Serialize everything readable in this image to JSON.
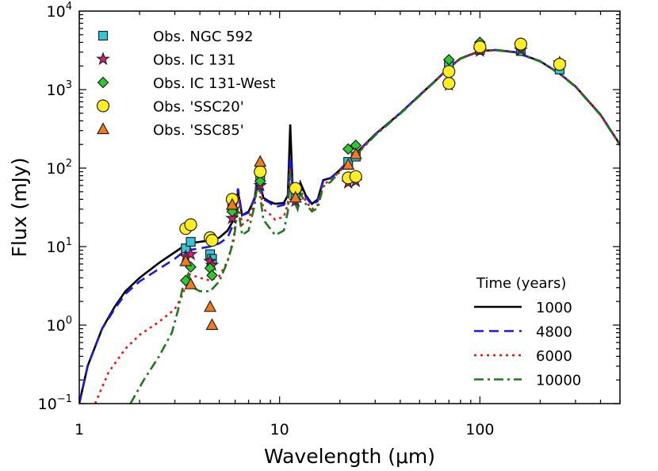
{
  "chart_data": {
    "type": "line+scatter",
    "title": "",
    "xlabel": "Wavelength (μm)",
    "ylabel": "Flux (mJy)",
    "xscale": "log",
    "yscale": "log",
    "xlim": [
      1,
      500
    ],
    "ylim": [
      0.1,
      10000
    ],
    "x_ticks": [
      {
        "value": 1,
        "label": "1"
      },
      {
        "value": 10,
        "label": "10"
      },
      {
        "value": 100,
        "label": "100"
      }
    ],
    "y_ticks": [
      {
        "value": 0.1,
        "base": "10",
        "exp": "−1"
      },
      {
        "value": 1,
        "base": "10",
        "exp": "0"
      },
      {
        "value": 10,
        "base": "10",
        "exp": "1"
      },
      {
        "value": 100,
        "base": "10",
        "exp": "2"
      },
      {
        "value": 1000,
        "base": "10",
        "exp": "3"
      },
      {
        "value": 10000,
        "base": "10",
        "exp": "4"
      }
    ],
    "legend_location": "top-left",
    "observations": [
      {
        "name": "Obs. NGC 592",
        "marker": "square",
        "color": "#33c7d6",
        "points": [
          [
            3.4,
            9.5
          ],
          [
            3.6,
            11.5
          ],
          [
            4.5,
            8.0
          ],
          [
            4.6,
            7.0
          ],
          [
            5.8,
            31
          ],
          [
            8.0,
            75
          ],
          [
            12,
            45
          ],
          [
            22,
            120
          ],
          [
            24,
            140
          ],
          [
            70,
            2100
          ],
          [
            100,
            3200
          ],
          [
            160,
            3100
          ],
          [
            250,
            1800
          ]
        ]
      },
      {
        "name": "Obs. IC 131",
        "marker": "star",
        "color": "#e0197a",
        "points": [
          [
            3.4,
            7.5
          ],
          [
            3.6,
            8.0
          ],
          [
            4.5,
            6.5
          ],
          [
            4.6,
            5.8
          ],
          [
            5.8,
            23
          ],
          [
            8.0,
            60
          ],
          [
            12,
            38
          ],
          [
            22,
            65
          ],
          [
            24,
            68
          ],
          [
            70,
            1150
          ],
          [
            100,
            3100
          ],
          [
            160,
            3200
          ],
          [
            250,
            2200
          ]
        ]
      },
      {
        "name": "Obs. IC 131-West",
        "marker": "diamond",
        "color": "#2dc92d",
        "points": [
          [
            3.4,
            3.7
          ],
          [
            3.6,
            5.5
          ],
          [
            4.5,
            5.3
          ],
          [
            4.6,
            4.3
          ],
          [
            5.8,
            28
          ],
          [
            8.0,
            68
          ],
          [
            12,
            50
          ],
          [
            22,
            175
          ],
          [
            24,
            195
          ],
          [
            70,
            2400
          ],
          [
            100,
            4000
          ],
          [
            160,
            3500
          ]
        ]
      },
      {
        "name": "Obs. 'SSC20'",
        "marker": "circle",
        "color": "#ffee22",
        "points": [
          [
            3.4,
            17
          ],
          [
            3.6,
            19
          ],
          [
            4.5,
            13
          ],
          [
            4.6,
            12
          ],
          [
            5.8,
            40
          ],
          [
            8.0,
            90
          ],
          [
            12,
            55
          ],
          [
            22,
            75
          ],
          [
            24,
            78
          ],
          [
            70,
            1700
          ],
          [
            70,
            1200
          ],
          [
            100,
            3500
          ],
          [
            160,
            3800
          ],
          [
            250,
            2100
          ]
        ]
      },
      {
        "name": "Obs. 'SSC85'",
        "marker": "triangle",
        "color": "#f37a1f",
        "points": [
          [
            3.4,
            6.5
          ],
          [
            3.6,
            3.3
          ],
          [
            4.5,
            1.7
          ],
          [
            4.6,
            1.0
          ],
          [
            5.8,
            34
          ],
          [
            8.0,
            120
          ],
          [
            12,
            42
          ],
          [
            22,
            110
          ],
          [
            24,
            150
          ]
        ]
      }
    ],
    "series": [
      {
        "name": "1000",
        "color": "#000000",
        "dash": "solid",
        "points": [
          [
            1,
            0.1
          ],
          [
            1.1,
            0.3
          ],
          [
            1.3,
            0.9
          ],
          [
            1.5,
            1.7
          ],
          [
            1.7,
            2.7
          ],
          [
            2.0,
            4.0
          ],
          [
            2.5,
            6.2
          ],
          [
            3.0,
            8.5
          ],
          [
            3.3,
            10
          ],
          [
            3.5,
            11
          ],
          [
            4.0,
            11.5
          ],
          [
            4.5,
            12
          ],
          [
            5.0,
            13
          ],
          [
            5.5,
            16
          ],
          [
            5.9,
            22
          ],
          [
            6.2,
            50
          ],
          [
            6.5,
            25
          ],
          [
            7.0,
            28
          ],
          [
            7.5,
            40
          ],
          [
            7.8,
            80
          ],
          [
            8.3,
            42
          ],
          [
            8.8,
            38
          ],
          [
            9.5,
            35
          ],
          [
            10.5,
            36
          ],
          [
            11.0,
            45
          ],
          [
            11.3,
            360
          ],
          [
            11.6,
            60
          ],
          [
            12.3,
            42
          ],
          [
            12.7,
            65
          ],
          [
            13.5,
            45
          ],
          [
            14.5,
            35
          ],
          [
            15.5,
            40
          ],
          [
            16.5,
            70
          ],
          [
            18,
            75
          ],
          [
            20,
            95
          ],
          [
            25,
            170
          ],
          [
            30,
            270
          ],
          [
            40,
            500
          ],
          [
            50,
            850
          ],
          [
            60,
            1300
          ],
          [
            70,
            1900
          ],
          [
            80,
            2500
          ],
          [
            100,
            3100
          ],
          [
            120,
            3200
          ],
          [
            150,
            3000
          ],
          [
            200,
            2300
          ],
          [
            250,
            1600
          ],
          [
            300,
            1100
          ],
          [
            400,
            480
          ],
          [
            500,
            200
          ]
        ]
      },
      {
        "name": "4800",
        "color": "#1818e6",
        "dash": "dashed",
        "points": [
          [
            1,
            0.1
          ],
          [
            1.1,
            0.3
          ],
          [
            1.3,
            0.9
          ],
          [
            1.5,
            1.6
          ],
          [
            1.7,
            2.5
          ],
          [
            2.0,
            3.6
          ],
          [
            2.5,
            5.2
          ],
          [
            3.0,
            7.0
          ],
          [
            3.3,
            8.5
          ],
          [
            3.5,
            9.0
          ],
          [
            4.0,
            9.5
          ],
          [
            4.5,
            10
          ],
          [
            5.0,
            11
          ],
          [
            5.5,
            13
          ],
          [
            5.9,
            20
          ],
          [
            6.2,
            55
          ],
          [
            6.5,
            25
          ],
          [
            7.0,
            27
          ],
          [
            7.5,
            42
          ],
          [
            7.8,
            85
          ],
          [
            8.3,
            40
          ],
          [
            8.8,
            37
          ],
          [
            9.5,
            32
          ],
          [
            10.5,
            34
          ],
          [
            11.0,
            40
          ],
          [
            11.3,
            140
          ],
          [
            11.6,
            55
          ],
          [
            12.3,
            40
          ],
          [
            12.7,
            55
          ],
          [
            13.5,
            43
          ],
          [
            14.5,
            34
          ],
          [
            15.5,
            38
          ],
          [
            16.5,
            68
          ],
          [
            18,
            74
          ],
          [
            20,
            95
          ],
          [
            25,
            170
          ],
          [
            30,
            270
          ],
          [
            40,
            500
          ],
          [
            50,
            850
          ],
          [
            60,
            1300
          ],
          [
            70,
            1900
          ],
          [
            80,
            2500
          ],
          [
            100,
            3100
          ],
          [
            120,
            3200
          ],
          [
            150,
            3000
          ],
          [
            200,
            2300
          ],
          [
            250,
            1600
          ],
          [
            300,
            1100
          ],
          [
            400,
            480
          ],
          [
            500,
            200
          ]
        ]
      },
      {
        "name": "6000",
        "color": "#ee1111",
        "dash": "dotted",
        "points": [
          [
            1.2,
            0.1
          ],
          [
            1.4,
            0.25
          ],
          [
            1.7,
            0.5
          ],
          [
            2.0,
            0.75
          ],
          [
            2.5,
            1.1
          ],
          [
            3.0,
            1.6
          ],
          [
            3.3,
            2.5
          ],
          [
            3.5,
            4.5
          ],
          [
            4.0,
            4.0
          ],
          [
            4.5,
            3.7
          ],
          [
            5.0,
            4.2
          ],
          [
            5.5,
            6.5
          ],
          [
            5.9,
            13
          ],
          [
            6.2,
            45
          ],
          [
            6.5,
            19
          ],
          [
            7.0,
            22
          ],
          [
            7.5,
            38
          ],
          [
            7.8,
            80
          ],
          [
            8.3,
            30
          ],
          [
            8.8,
            27
          ],
          [
            9.5,
            22
          ],
          [
            10.5,
            24
          ],
          [
            11.0,
            35
          ],
          [
            11.3,
            100
          ],
          [
            11.6,
            48
          ],
          [
            12.3,
            35
          ],
          [
            12.7,
            52
          ],
          [
            13.5,
            38
          ],
          [
            14.5,
            30
          ],
          [
            15.5,
            34
          ],
          [
            16.5,
            62
          ],
          [
            18,
            70
          ],
          [
            20,
            92
          ],
          [
            25,
            165
          ],
          [
            30,
            265
          ],
          [
            40,
            495
          ],
          [
            50,
            840
          ],
          [
            60,
            1290
          ],
          [
            70,
            1880
          ],
          [
            80,
            2480
          ],
          [
            100,
            3080
          ],
          [
            120,
            3180
          ],
          [
            150,
            2980
          ],
          [
            200,
            2290
          ],
          [
            250,
            1590
          ],
          [
            300,
            1090
          ],
          [
            400,
            475
          ],
          [
            500,
            198
          ]
        ]
      },
      {
        "name": "10000",
        "color": "#1b7a1b",
        "dash": "dashdot",
        "points": [
          [
            1.8,
            0.1
          ],
          [
            2.1,
            0.2
          ],
          [
            2.5,
            0.4
          ],
          [
            2.9,
            0.8
          ],
          [
            3.1,
            1.5
          ],
          [
            3.3,
            3.2
          ],
          [
            3.5,
            4.5
          ],
          [
            3.7,
            3.0
          ],
          [
            4.0,
            2.7
          ],
          [
            4.5,
            2.7
          ],
          [
            5.0,
            3.6
          ],
          [
            5.5,
            6.5
          ],
          [
            5.9,
            12
          ],
          [
            6.2,
            32
          ],
          [
            6.5,
            14
          ],
          [
            7.0,
            16
          ],
          [
            7.5,
            33
          ],
          [
            7.8,
            70
          ],
          [
            8.3,
            22
          ],
          [
            8.8,
            18
          ],
          [
            9.5,
            14
          ],
          [
            10.5,
            16
          ],
          [
            11.0,
            28
          ],
          [
            11.3,
            90
          ],
          [
            11.6,
            42
          ],
          [
            12.3,
            30
          ],
          [
            12.7,
            48
          ],
          [
            13.5,
            35
          ],
          [
            14.5,
            28
          ],
          [
            15.5,
            31
          ],
          [
            16.5,
            58
          ],
          [
            18,
            67
          ],
          [
            20,
            90
          ],
          [
            25,
            162
          ],
          [
            30,
            262
          ],
          [
            40,
            490
          ],
          [
            50,
            835
          ],
          [
            60,
            1285
          ],
          [
            70,
            1870
          ],
          [
            80,
            2470
          ],
          [
            100,
            3070
          ],
          [
            120,
            3170
          ],
          [
            150,
            2970
          ],
          [
            200,
            2280
          ],
          [
            250,
            1585
          ],
          [
            300,
            1085
          ],
          [
            400,
            472
          ],
          [
            500,
            196
          ]
        ]
      }
    ],
    "legend2_title": "Time (years)"
  }
}
